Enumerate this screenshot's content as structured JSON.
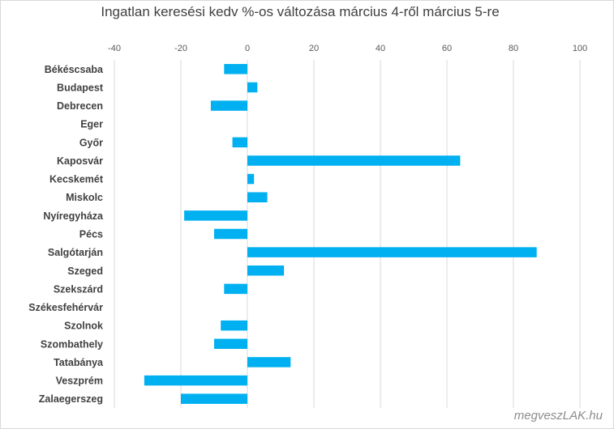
{
  "chart_data": {
    "type": "bar",
    "orientation": "horizontal",
    "title": "Ingatlan keresési kedv %-os változása március 4-ről március 5-re",
    "categories": [
      "Békéscsaba",
      "Budapest",
      "Debrecen",
      "Eger",
      "Győr",
      "Kaposvár",
      "Kecskemét",
      "Miskolc",
      "Nyíregyháza",
      "Pécs",
      "Salgótarján",
      "Szeged",
      "Szekszárd",
      "Székesfehérvár",
      "Szolnok",
      "Szombathely",
      "Tatabánya",
      "Veszprém",
      "Zalaegerszeg"
    ],
    "values": [
      -7,
      3,
      -11,
      0,
      -4.5,
      64,
      2,
      6,
      -19,
      -10,
      87,
      11,
      -7,
      0,
      -8,
      -10,
      13,
      -31,
      -20
    ],
    "xlim": [
      -40,
      100
    ],
    "xticks": [
      -40,
      -20,
      0,
      20,
      40,
      60,
      80,
      100
    ],
    "grid": true,
    "bar_color": "#00b0f0",
    "legend": "none"
  },
  "watermark": "megveszLAK.hu"
}
